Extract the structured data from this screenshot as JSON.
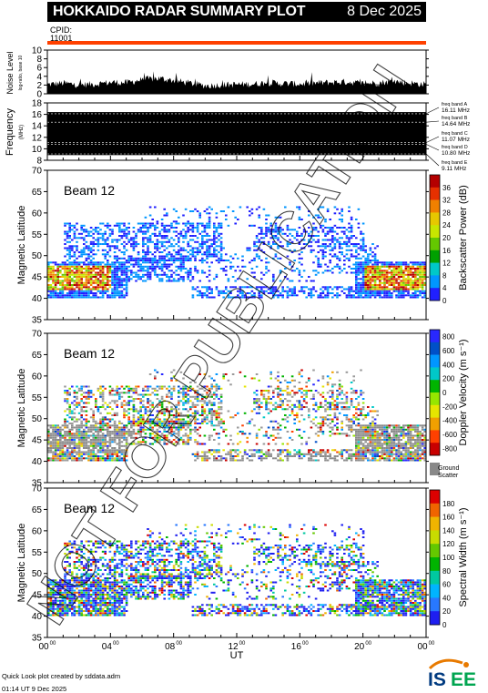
{
  "header": {
    "title": "HOKKAIDO RADAR SUMMARY PLOT",
    "date": "8 Dec 2025"
  },
  "cpid": {
    "label": "CPID:",
    "value": "11001"
  },
  "footer": {
    "line1": "Quick Look plot created by sddata.adm",
    "line2": "01:14 UT  9 Dec 2025"
  },
  "logo": {
    "text": "ISEE"
  },
  "watermark": "NOT FOR PUBLICATION",
  "colors": {
    "frame": "#000000",
    "orange_bar": "#ff4000",
    "ground": "#888888"
  },
  "chart_data": [
    {
      "type": "line",
      "name": "noise-level",
      "ylabel": "Noise Level",
      "ylabel_sub": "log-ratio, base 10",
      "ylim": [
        0,
        10
      ],
      "yticks": [
        0,
        2,
        4,
        6,
        8,
        10
      ],
      "x": [
        0,
        1,
        2,
        3,
        4,
        5,
        6,
        7,
        8,
        9,
        10,
        11,
        12,
        13,
        14,
        15,
        16,
        17,
        18,
        19,
        20,
        21,
        22,
        23,
        24
      ],
      "values": [
        1.9,
        2.2,
        1.8,
        2.0,
        2.4,
        2.3,
        3.0,
        3.3,
        2.8,
        2.2,
        1.6,
        1.8,
        1.9,
        2.0,
        2.3,
        2.1,
        2.0,
        2.2,
        2.4,
        2.5,
        2.1,
        2.3,
        2.6,
        2.2,
        1.9
      ]
    },
    {
      "type": "line",
      "name": "frequency",
      "ylabel": "Frequency",
      "ylabel_sub": "(MHz)",
      "ylim": [
        8,
        18
      ],
      "yticks": [
        8,
        10,
        12,
        14,
        16,
        18
      ],
      "bands": [
        {
          "label": "freq band A",
          "value": "16.11 MHz",
          "mhz": 16.11
        },
        {
          "label": "freq band B",
          "value": "14.64 MHz",
          "mhz": 14.64
        },
        {
          "label": "freq band C",
          "value": "11.07 MHz",
          "mhz": 11.07
        },
        {
          "label": "freq band D",
          "value": "10.80 MHz",
          "mhz": 10.8
        },
        {
          "label": "freq band E",
          "value": "9.11 MHz",
          "mhz": 9.11
        }
      ]
    },
    {
      "type": "heatmap",
      "name": "backscatter-power",
      "beam": "Beam 12",
      "ylabel": "Magnetic Latitude",
      "ylim": [
        35,
        70
      ],
      "yticks": [
        35,
        40,
        45,
        50,
        55,
        60,
        65,
        70
      ],
      "colorbar_label": "Backscatter Power (dB)",
      "colorbar_ticks": [
        "0",
        "4",
        "8",
        "12",
        "16",
        "20",
        "24",
        "28",
        "32",
        "36"
      ],
      "colorbar_range": [
        0,
        40
      ]
    },
    {
      "type": "heatmap",
      "name": "doppler-velocity",
      "beam": "Beam 12",
      "ylabel": "Magnetic Latitude",
      "ylim": [
        35,
        70
      ],
      "yticks": [
        35,
        40,
        45,
        50,
        55,
        60,
        65,
        70
      ],
      "colorbar_label": "Doppler Velocity (m s⁻¹)",
      "colorbar_ticks": [
        "800",
        "600",
        "400",
        "200",
        "0",
        "-200",
        "-400",
        "-600",
        "-800"
      ],
      "colorbar_range": [
        -800,
        800
      ],
      "ground_label": [
        "Ground",
        "Scatter"
      ]
    },
    {
      "type": "heatmap",
      "name": "spectral-width",
      "beam": "Beam 12",
      "ylabel": "Magnetic Latitude",
      "ylim": [
        35,
        70
      ],
      "yticks": [
        35,
        40,
        45,
        50,
        55,
        60,
        65,
        70
      ],
      "colorbar_label": "Spectral Width (m s⁻¹)",
      "colorbar_ticks": [
        "0",
        "20",
        "40",
        "60",
        "80",
        "100",
        "120",
        "140",
        "160",
        "180"
      ],
      "colorbar_range": [
        0,
        200
      ]
    },
    {
      "type": "heatmap",
      "name": "time-axis",
      "xlabel": "UT",
      "xlim": [
        0,
        24
      ],
      "xticks": [
        {
          "h": 0,
          "label": "00",
          "sup": "00"
        },
        {
          "h": 4,
          "label": "04",
          "sup": "00"
        },
        {
          "h": 8,
          "label": "08",
          "sup": "00"
        },
        {
          "h": 12,
          "label": "12",
          "sup": "00"
        },
        {
          "h": 16,
          "label": "16",
          "sup": "00"
        },
        {
          "h": 20,
          "label": "20",
          "sup": "00"
        },
        {
          "h": 24,
          "label": "00",
          "sup": "00"
        }
      ]
    }
  ]
}
